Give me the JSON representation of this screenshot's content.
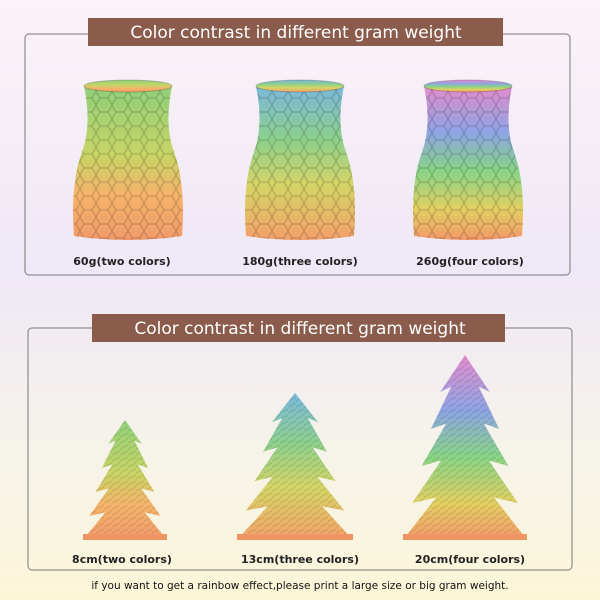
{
  "sections": [
    {
      "title": "Color contrast in different gram weight",
      "items": [
        {
          "caption": "60g(two colors)"
        },
        {
          "caption": "180g(three colors)"
        },
        {
          "caption": "260g(four colors)"
        }
      ]
    },
    {
      "title": "Color contrast in different gram weight",
      "items": [
        {
          "caption": "8cm(two colors)"
        },
        {
          "caption": "13cm(three colors)"
        },
        {
          "caption": "20cm(four colors)"
        }
      ]
    }
  ],
  "footer": {
    "note": "if you want to get a rainbow effect,please print a large size or big gram weight."
  }
}
